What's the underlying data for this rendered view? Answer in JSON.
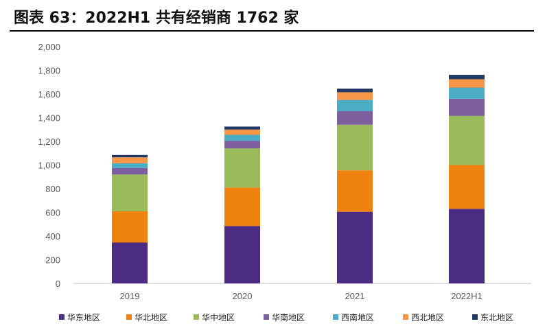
{
  "chart_data": {
    "type": "bar",
    "stacked": true,
    "title": "图表 63：2022H1 共有经销商 1762 家",
    "categories": [
      "2019",
      "2020",
      "2021",
      "2022H1"
    ],
    "ylim": [
      0,
      2000
    ],
    "yticks": [
      "0",
      "200",
      "400",
      "600",
      "800",
      "1,000",
      "1,200",
      "1,400",
      "1,600",
      "1,800",
      "2,000"
    ],
    "ytick_values": [
      0,
      200,
      400,
      600,
      800,
      1000,
      1200,
      1400,
      1600,
      1800,
      2000
    ],
    "legend_position": "bottom",
    "series": [
      {
        "name": "华东地区",
        "color": "#4B2C82",
        "values": [
          345,
          485,
          605,
          630
        ]
      },
      {
        "name": "华北地区",
        "color": "#F0820F",
        "values": [
          265,
          325,
          350,
          370
        ]
      },
      {
        "name": "华中地区",
        "color": "#9ABB59",
        "values": [
          310,
          330,
          385,
          415
        ]
      },
      {
        "name": "华南地区",
        "color": "#7D5FA0",
        "values": [
          55,
          65,
          115,
          145
        ]
      },
      {
        "name": "西南地区",
        "color": "#4BACC6",
        "values": [
          40,
          50,
          95,
          95
        ]
      },
      {
        "name": "西北地区",
        "color": "#F79646",
        "values": [
          50,
          45,
          65,
          70
        ]
      },
      {
        "name": "东北地区",
        "color": "#1F3864",
        "values": [
          20,
          25,
          30,
          37
        ]
      }
    ]
  }
}
